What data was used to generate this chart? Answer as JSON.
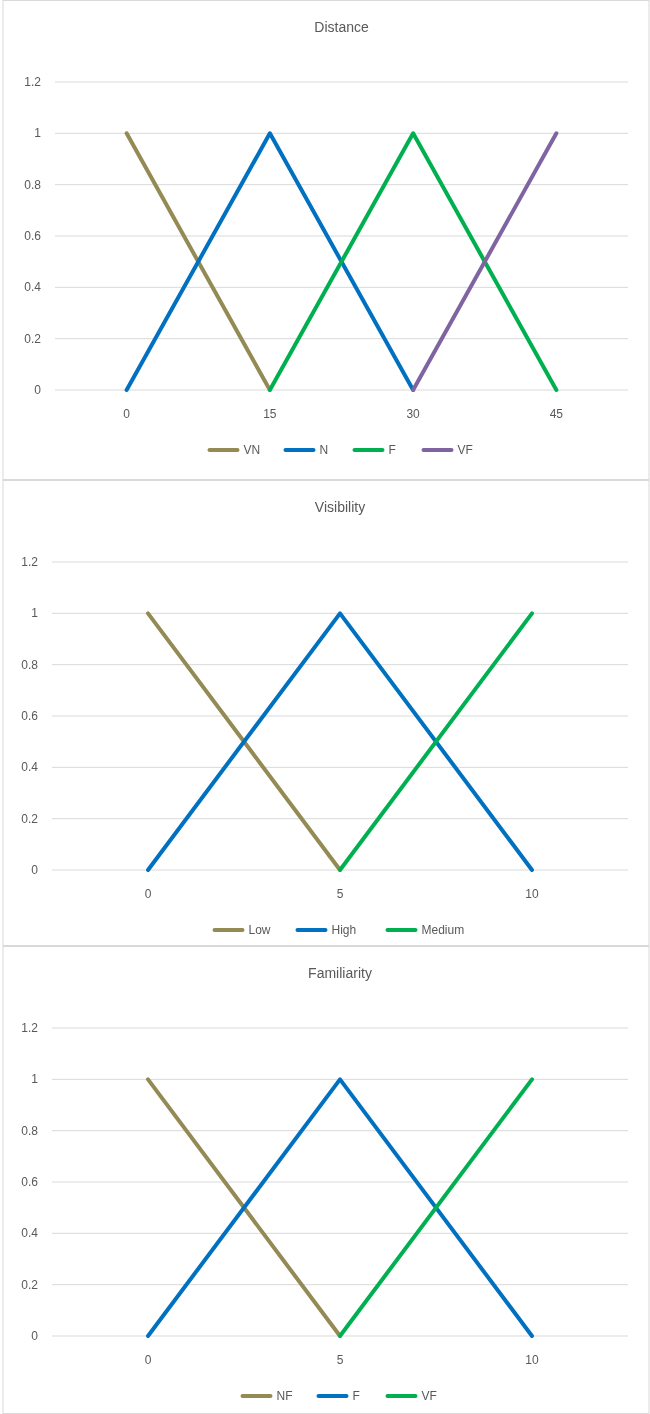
{
  "chart_data": [
    {
      "type": "line",
      "title": "Distance",
      "categories": [
        "0",
        "15",
        "30",
        "45"
      ],
      "series": [
        {
          "name": "VN",
          "color": "#948a54",
          "values": [
            1,
            0,
            null,
            null
          ]
        },
        {
          "name": "N",
          "color": "#0070c0",
          "values": [
            0,
            1,
            0,
            null
          ]
        },
        {
          "name": "F",
          "color": "#00b050",
          "values": [
            null,
            0,
            1,
            0
          ]
        },
        {
          "name": "VF",
          "color": "#8064a2",
          "values": [
            null,
            null,
            0,
            1
          ]
        }
      ],
      "ylim": [
        0,
        1.2
      ],
      "yticks": [
        0,
        0.2,
        0.4,
        0.6,
        0.8,
        1,
        1.2
      ],
      "grid": "y",
      "legend": "bottom",
      "marker": "none",
      "line_style": "solid"
    },
    {
      "type": "line",
      "title": "Visibility",
      "categories": [
        "0",
        "5",
        "10"
      ],
      "series": [
        {
          "name": "Low",
          "color": "#948a54",
          "values": [
            1,
            0,
            null
          ]
        },
        {
          "name": "High",
          "color": "#0070c0",
          "values": [
            0,
            1,
            0
          ]
        },
        {
          "name": "Medium",
          "color": "#00b050",
          "values": [
            null,
            0,
            1
          ]
        }
      ],
      "ylim": [
        0,
        1.2
      ],
      "yticks": [
        0,
        0.2,
        0.4,
        0.6,
        0.8,
        1,
        1.2
      ],
      "grid": "y",
      "legend": "bottom",
      "marker": "none",
      "line_style": "solid"
    },
    {
      "type": "line",
      "title": "Familiarity",
      "categories": [
        "0",
        "5",
        "10"
      ],
      "series": [
        {
          "name": "NF",
          "color": "#948a54",
          "values": [
            1,
            0,
            null
          ]
        },
        {
          "name": "F",
          "color": "#0070c0",
          "values": [
            0,
            1,
            0
          ]
        },
        {
          "name": "VF",
          "color": "#00b050",
          "values": [
            null,
            0,
            1
          ]
        }
      ],
      "ylim": [
        0,
        1.2
      ],
      "yticks": [
        0,
        0.2,
        0.4,
        0.6,
        0.8,
        1,
        1.2
      ],
      "grid": "y",
      "legend": "bottom",
      "marker": "none",
      "line_style": "solid"
    }
  ]
}
